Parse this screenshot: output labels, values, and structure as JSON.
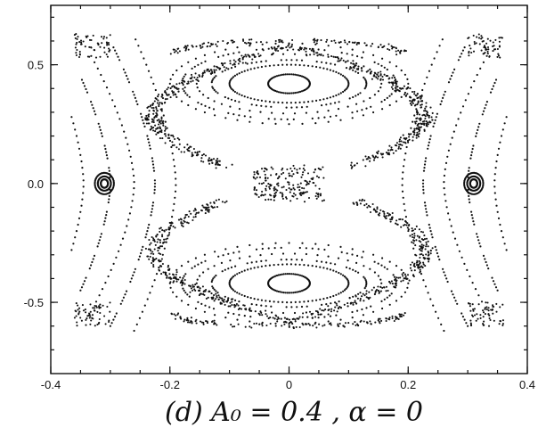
{
  "chart_data": {
    "type": "scatter",
    "title": "",
    "xlabel": "",
    "ylabel": "",
    "xlim": [
      -0.4,
      0.4
    ],
    "ylim": [
      -0.8,
      0.75
    ],
    "x_ticks": [
      -0.4,
      -0.2,
      0,
      0.2,
      0.4
    ],
    "x_tick_labels": [
      "-0.4",
      "-0.2",
      "0",
      "0.2",
      "0.4"
    ],
    "y_ticks": [
      -0.5,
      0,
      0.5
    ],
    "y_tick_labels": [
      "-0.5",
      "0.0",
      "0.5"
    ],
    "caption": "(d) A₀ = 0.4 , α = 0",
    "grid": false,
    "legend": "none",
    "color": "#111111",
    "center_islands": {
      "centers": [
        [
          0,
          0.42
        ],
        [
          0,
          -0.42
        ]
      ],
      "semi_axes_x": [
        0.035,
        0.1,
        0.13,
        0.155,
        0.18,
        0.2
      ],
      "semi_axes_y": [
        0.04,
        0.08,
        0.1,
        0.125,
        0.15,
        0.17
      ],
      "styles": [
        "solid",
        "solid",
        "dash",
        "dot",
        "dash",
        "dot"
      ]
    },
    "side_islands": {
      "centers": [
        [
          -0.31,
          0
        ],
        [
          0.31,
          0
        ]
      ],
      "semi_axes_x": [
        0.006,
        0.011,
        0.016
      ],
      "semi_axes_y": [
        0.018,
        0.03,
        0.045
      ]
    },
    "separatrix_chaos": {
      "x_half_width": 0.21,
      "y_half_height": 0.58,
      "waist_half_width": 0.035,
      "point_count": 1400
    },
    "outer_curves": [
      {
        "x0": 0.19,
        "amplitude": 0.07,
        "y_extent": 0.62,
        "style": "dot"
      },
      {
        "x0": 0.225,
        "amplitude": 0.075,
        "y_extent": 0.6,
        "style": "dash"
      },
      {
        "x0": 0.26,
        "amplitude": 0.075,
        "y_extent": 0.55,
        "style": "dot"
      },
      {
        "x0": 0.3,
        "amplitude": 0.05,
        "y_extent": 0.45,
        "style": "dash"
      },
      {
        "x0": 0.345,
        "amplitude": 0.02,
        "y_extent": 0.28,
        "style": "dot"
      }
    ]
  }
}
